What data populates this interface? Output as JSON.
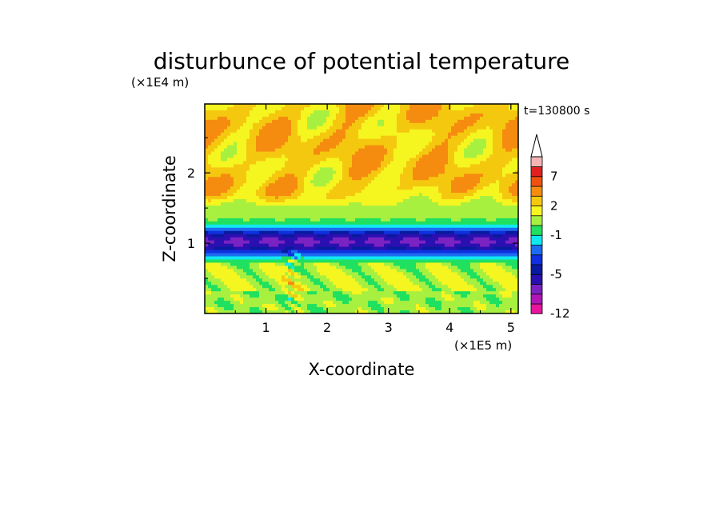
{
  "chart_data": {
    "type": "heatmap",
    "title": "disturbunce of potential temperature",
    "xlabel": "X-coordinate",
    "ylabel": "Z-coordinate",
    "x_unit": "(×1E5 m)",
    "y_unit": "(×1E4 m)",
    "time_label": "t=130800 s",
    "x_ticks": [
      1,
      2,
      3,
      4,
      5
    ],
    "y_ticks": [
      1,
      2
    ],
    "xlim": [
      0,
      5.12
    ],
    "ylim": [
      0,
      2.98
    ],
    "colorbar": {
      "levels": [
        -12,
        -10,
        -8,
        -6,
        -5,
        -4,
        -3,
        -2,
        -1,
        0,
        1,
        2,
        3,
        5,
        7,
        9,
        11
      ],
      "tick_labels": [
        "-12",
        "-5",
        "-1",
        "2",
        "7"
      ],
      "tick_values": [
        -12,
        -5,
        -1,
        2,
        7
      ],
      "colors": [
        "#e8139e",
        "#b015b8",
        "#7a22c2",
        "#2a10b0",
        "#0a1aa0",
        "#1030e0",
        "#1c6cf0",
        "#10e8f0",
        "#20e060",
        "#a8f040",
        "#f5f520",
        "#f5c810",
        "#f58c10",
        "#f05010",
        "#e02020",
        "#f5b4b4"
      ],
      "extend": "max"
    },
    "bands": [
      {
        "z": [
          0.0,
          0.3
        ],
        "dominant_level": 0,
        "pattern": "mixed small cells"
      },
      {
        "z": [
          0.3,
          0.75
        ],
        "dominant_level": 1,
        "pattern": "alternating yellow and green cells"
      },
      {
        "z": [
          0.75,
          0.85
        ],
        "dominant_level": -1
      },
      {
        "z": [
          0.85,
          1.2
        ],
        "dominant_level": -5,
        "pattern": "dark blue core with deeper patches"
      },
      {
        "z": [
          1.2,
          1.3
        ],
        "dominant_level": -1
      },
      {
        "z": [
          1.3,
          1.6
        ],
        "dominant_level": 0
      },
      {
        "z": [
          1.6,
          2.98
        ],
        "dominant_level": 2,
        "pattern": "yellow with orange and green patches"
      }
    ]
  }
}
